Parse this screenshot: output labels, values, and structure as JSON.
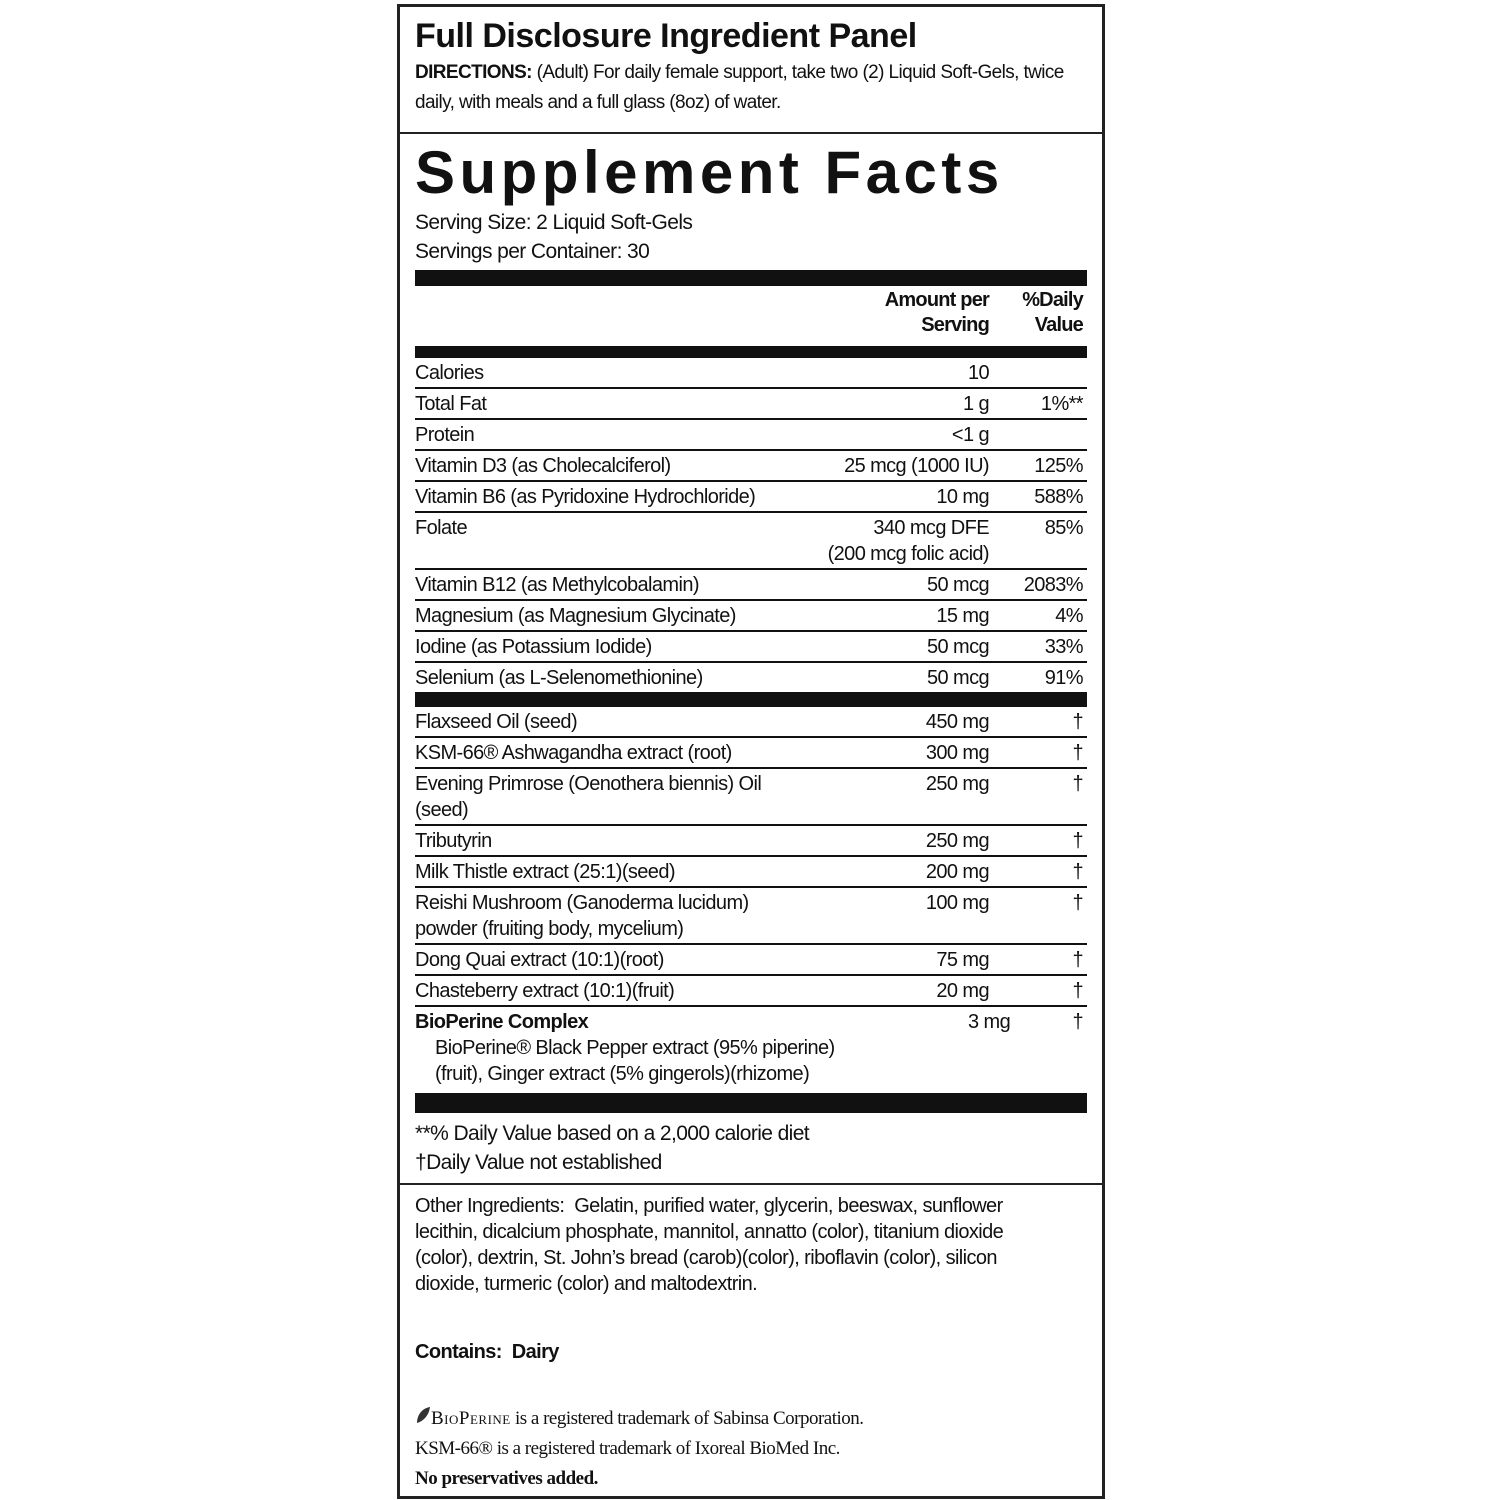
{
  "panel": {
    "title": "Full Disclosure Ingredient Panel",
    "directions_label": "DIRECTIONS:",
    "directions": "(Adult) For daily female support, take two (2) Liquid Soft-Gels, twice daily, with meals and a full glass (8oz) of water."
  },
  "facts": {
    "title": "Supplement Facts",
    "serving_size": "Serving Size:  2 Liquid Soft-Gels",
    "servings_per_container": "Servings per Container:  30",
    "header": [
      "Amount per Serving",
      "%Daily Value"
    ],
    "rows": [
      [
        "Calories",
        "10"
      ],
      [
        "Total Fat",
        "1 g",
        "1%**"
      ],
      [
        "Protein",
        "<1 g"
      ],
      [
        "Vitamin D3 (as Cholecalciferol)",
        "25 mcg (1000 IU)",
        "125%"
      ],
      [
        "Vitamin B6 (as Pyridoxine Hydrochloride)",
        "10 mg",
        "588%"
      ],
      [
        "Folate",
        "340 mcg DFE\n(200 mcg folic acid)",
        "85%"
      ],
      [
        "Vitamin B12 (as Methylcobalamin)",
        "50 mcg",
        "2083%"
      ],
      [
        "Magnesium (as Magnesium Glycinate)",
        "15 mg",
        "4%"
      ],
      [
        "Iodine (as Potassium Iodide)",
        "50 mcg",
        "33%"
      ],
      [
        "Selenium (as L-Selenomethionine)",
        "50 mcg",
        "91%"
      ]
    ],
    "other_rows": [
      [
        "Flaxseed Oil (seed)",
        "450 mg",
        "†"
      ],
      [
        "KSM-66® Ashwagandha extract (root)",
        "300 mg",
        "†"
      ],
      [
        "Evening Primrose (Oenothera biennis) Oil (seed)",
        "250 mg",
        "†"
      ],
      [
        "Tributyrin",
        "250 mg",
        "†"
      ],
      [
        "Milk Thistle extract (25:1)(seed)",
        "200 mg",
        "†"
      ],
      [
        "Reishi Mushroom (Ganoderma lucidum) powder (fruiting body, mycelium)",
        "100 mg",
        "†"
      ],
      [
        "Dong Quai extract (10:1)(root)",
        "75 mg",
        "†"
      ],
      [
        "Chasteberry extract (10:1)(fruit)",
        "20 mg",
        "†"
      ]
    ],
    "complex": {
      "name": "BioPerine Complex",
      "amount": "3 mg",
      "dv": "†",
      "detail": "BioPerine® Black Pepper extract (95% piperine) (fruit), Ginger extract (5% gingerols)(rhizome)"
    },
    "footnotes": [
      "**% Daily Value based on a 2,000 calorie diet",
      "†Daily Value not established"
    ]
  },
  "other_ingredients": {
    "label": "Other Ingredients:",
    "text": "Gelatin, purified water, glycerin, beeswax, sunflower lecithin, dicalcium phosphate, mannitol, annatto (color), titanium dioxide (color), dextrin, St. John’s bread (carob)(color), riboflavin (color), silicon dioxide, turmeric (color) and maltodextrin."
  },
  "contains": {
    "label": "Contains:",
    "text": "Dairy"
  },
  "trademarks": {
    "bioperine_brand": "BioPerine",
    "bioperine": "is a registered trademark of Sabinsa Corporation.",
    "ksm": "KSM-66® is a registered trademark of Ixoreal BioMed Inc.",
    "preservatives": "No preservatives added."
  }
}
